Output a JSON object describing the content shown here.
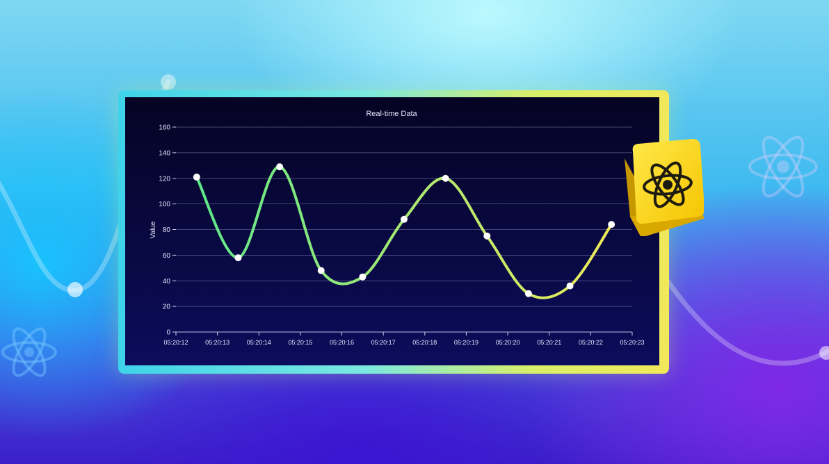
{
  "chart_data": {
    "type": "line",
    "title": "Real-time Data",
    "xlabel": "",
    "ylabel": "Value",
    "ylim": [
      0,
      160
    ],
    "yticks": [
      0,
      20,
      40,
      60,
      80,
      100,
      120,
      140,
      160
    ],
    "xticks": [
      "05:20:12",
      "05:20:13",
      "05:20:14",
      "05:20:15",
      "05:20:16",
      "05:20:17",
      "05:20:18",
      "05:20:19",
      "05:20:20",
      "05:20:21",
      "05:20:22",
      "05:20:23"
    ],
    "grid": true,
    "series": [
      {
        "points": [
          {
            "x": "05:20:12.5",
            "y": 121
          },
          {
            "x": "05:20:13.5",
            "y": 58
          },
          {
            "x": "05:20:14.5",
            "y": 129
          },
          {
            "x": "05:20:15.5",
            "y": 48
          },
          {
            "x": "05:20:16.5",
            "y": 43
          },
          {
            "x": "05:20:17.5",
            "y": 88
          },
          {
            "x": "05:20:18.5",
            "y": 120
          },
          {
            "x": "05:20:19.5",
            "y": 75
          },
          {
            "x": "05:20:20.5",
            "y": 30
          },
          {
            "x": "05:20:21.5",
            "y": 36
          },
          {
            "x": "05:20:22.5",
            "y": 84
          }
        ],
        "color_start": "#5ee88a",
        "color_end": "#f0ea5a"
      }
    ]
  },
  "theme": {
    "panel_bg": "#07063a",
    "grid_color": "#7c7fb0",
    "text_color": "#e6e8ff",
    "badge_color": "#f5d20a"
  },
  "icons": {
    "badge": "react-atom-icon",
    "decor_left": "react-atom-icon",
    "decor_right": "react-atom-icon"
  }
}
